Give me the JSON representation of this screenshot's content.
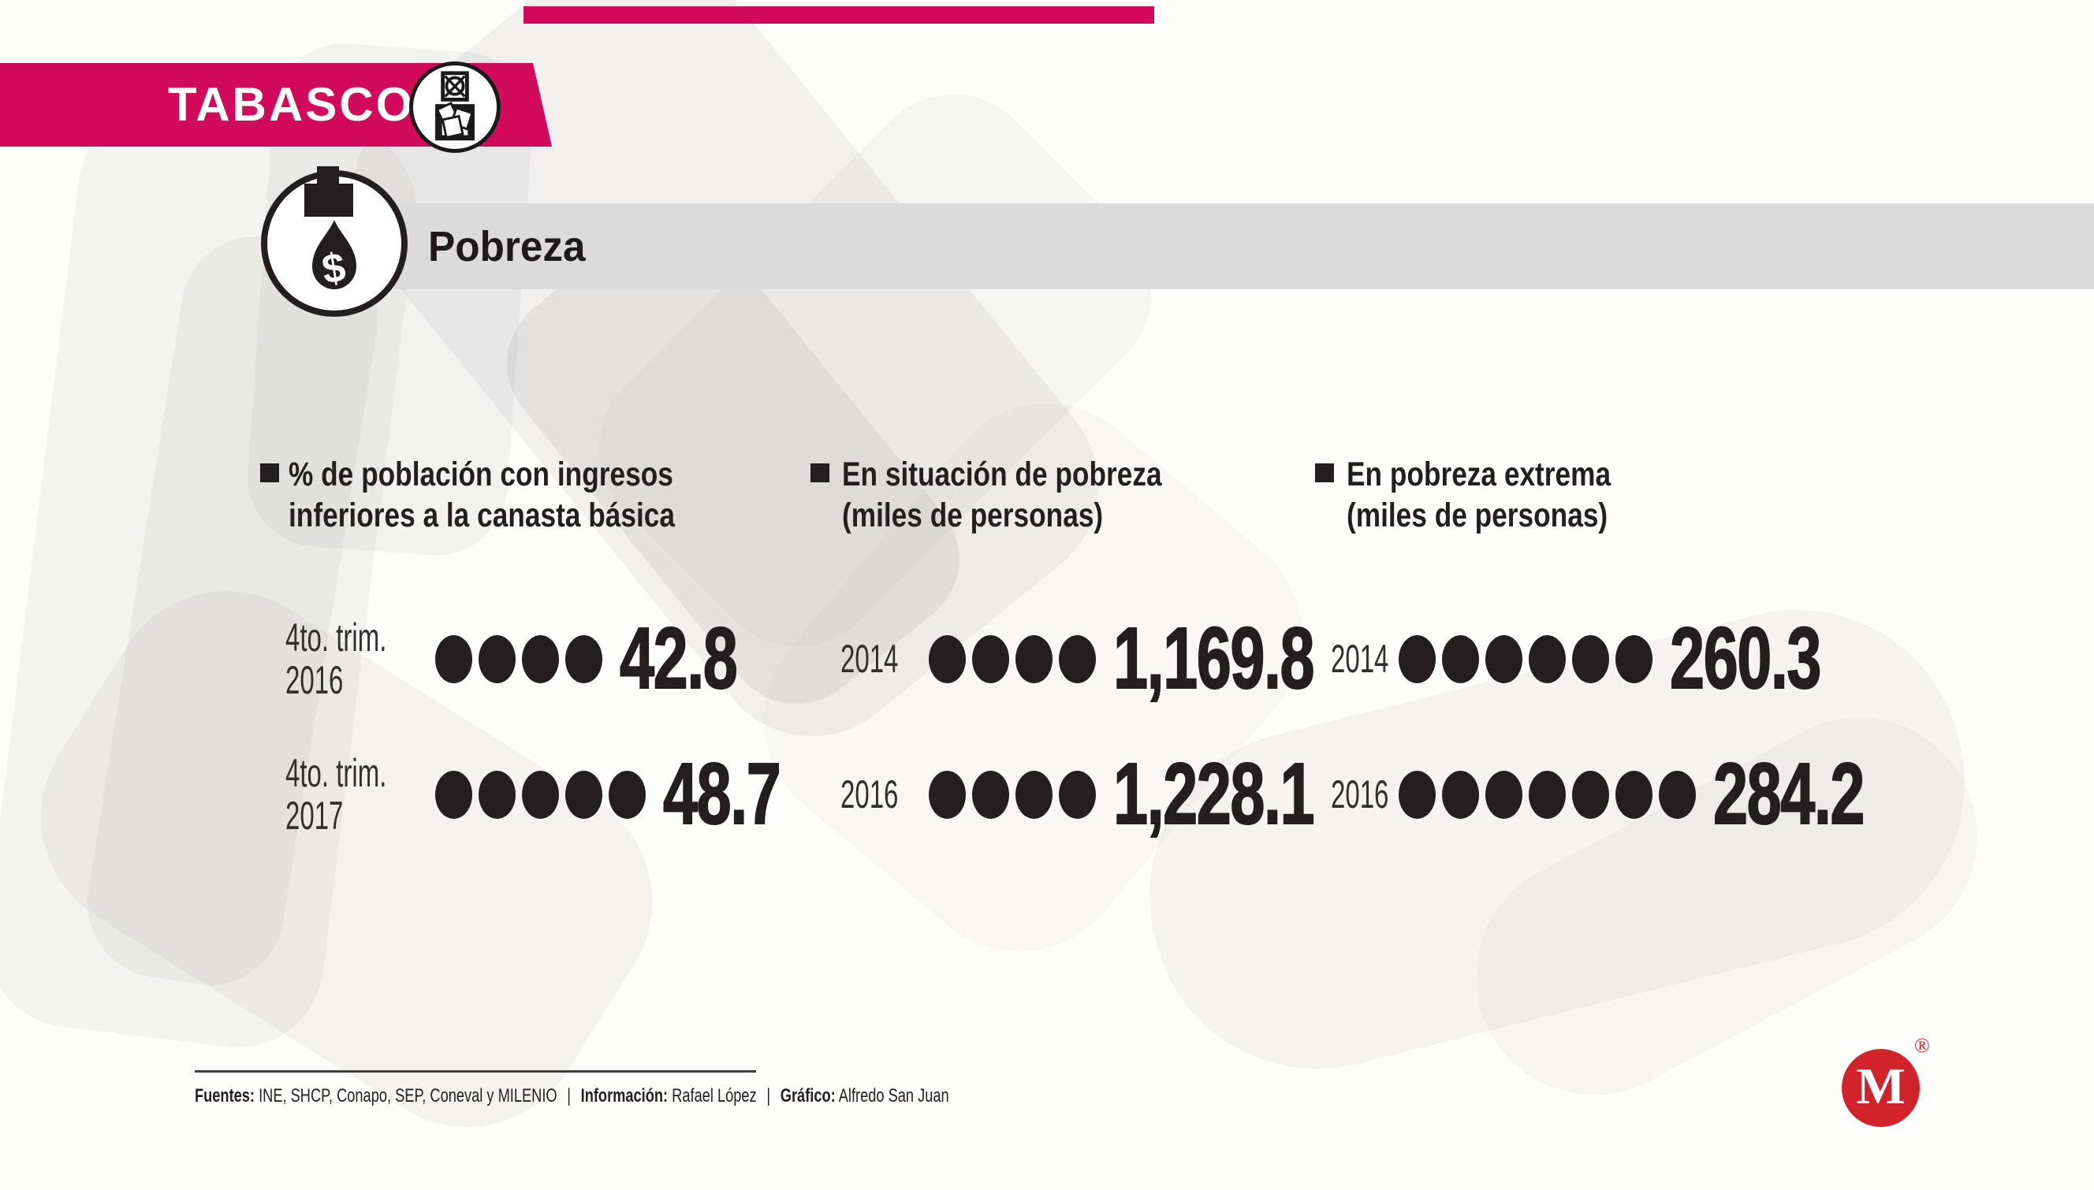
{
  "banner": {
    "region": "TABASCO"
  },
  "section": {
    "title": "Pobreza"
  },
  "columns": [
    {
      "heading_line1": "% de población con ingresos",
      "heading_line2": "inferiores a la canasta básica",
      "rows": [
        {
          "label_lines": [
            "4to. trim.",
            "2016"
          ],
          "dots": 4,
          "value": "42.8"
        },
        {
          "label_lines": [
            "4to. trim.",
            "2017"
          ],
          "dots": 5,
          "value": "48.7"
        }
      ]
    },
    {
      "heading_line1": "En situación de pobreza",
      "heading_line2": "(miles de personas)",
      "rows": [
        {
          "label_lines": [
            "2014"
          ],
          "dots": 4,
          "value": "1,169.8"
        },
        {
          "label_lines": [
            "2016"
          ],
          "dots": 4,
          "value": "1,228.1"
        }
      ]
    },
    {
      "heading_line1": "En pobreza extrema",
      "heading_line2": "(miles de personas)",
      "rows": [
        {
          "label_lines": [
            "2014"
          ],
          "dots": 6,
          "value": "260.3"
        },
        {
          "label_lines": [
            "2016"
          ],
          "dots": 7,
          "value": "284.2"
        }
      ]
    }
  ],
  "footer": {
    "sources_label": "Fuentes:",
    "sources": "INE, SHCP, Conapo, SEP, Coneval y MILENIO",
    "sep1": "|",
    "info_label": "Información:",
    "info": "Rafael López",
    "sep2": "|",
    "graphic_label": "Gráfico:",
    "graphic": "Alfredo San Juan"
  },
  "logo": {
    "letter": "M",
    "registered": "®"
  },
  "colors": {
    "accent": "#d10a5c",
    "section_bar": "#dbdbdb",
    "ink": "#231f20",
    "logo_red": "#d2232a"
  },
  "chart_data": [
    {
      "type": "bar",
      "title": "% de población con ingresos inferiores a la canasta básica",
      "categories": [
        "4to. trim. 2016",
        "4to. trim. 2017"
      ],
      "values": [
        42.8,
        48.7
      ],
      "dot_counts": [
        4,
        5
      ],
      "legend_position": "none",
      "grid": false
    },
    {
      "type": "bar",
      "title": "En situación de pobreza (miles de personas)",
      "categories": [
        "2014",
        "2016"
      ],
      "values": [
        1169.8,
        1228.1
      ],
      "dot_counts": [
        4,
        4
      ],
      "legend_position": "none",
      "grid": false
    },
    {
      "type": "bar",
      "title": "En pobreza extrema (miles de personas)",
      "categories": [
        "2014",
        "2016"
      ],
      "values": [
        260.3,
        284.2
      ],
      "dot_counts": [
        6,
        7
      ],
      "legend_position": "none",
      "grid": false
    }
  ]
}
